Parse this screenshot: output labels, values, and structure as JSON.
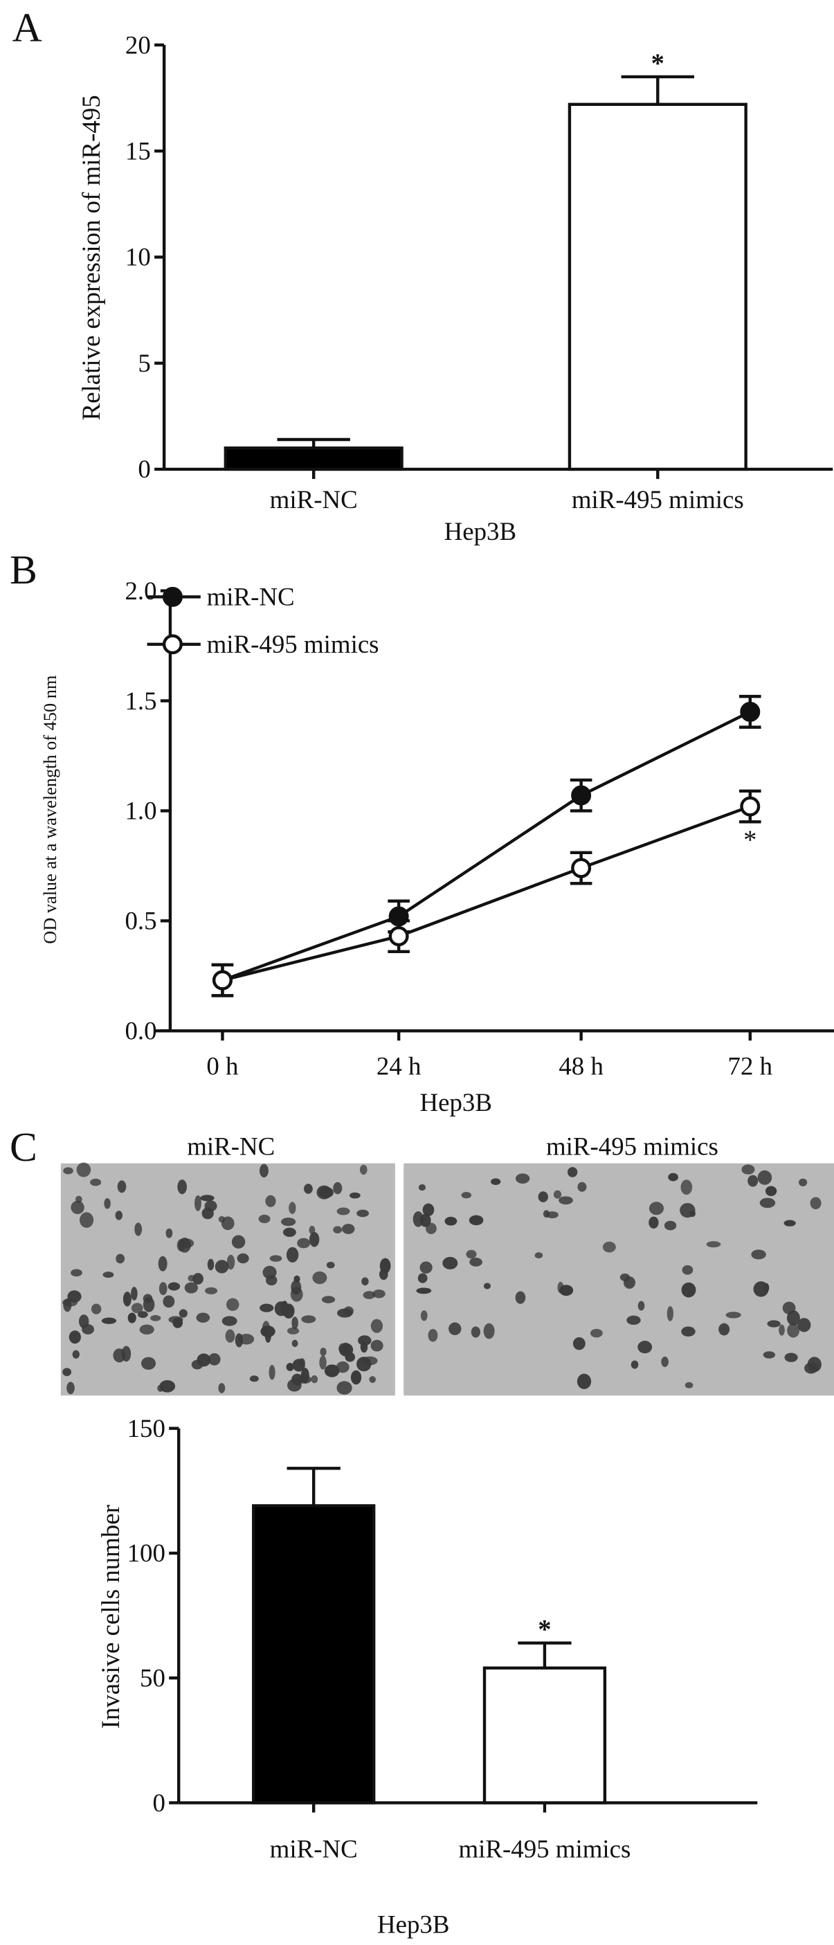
{
  "colors": {
    "ink": "#111111",
    "filled_bar": "#000000",
    "open_bar": "#ffffff",
    "micrograph_bg": "#b9b9b9",
    "cell": "#3a3a3a"
  },
  "chart_data": [
    {
      "panel": "A",
      "type": "bar",
      "categories": [
        "miR-NC",
        "miR-495 mimics"
      ],
      "values": [
        1.0,
        17.2
      ],
      "errors": [
        0.4,
        1.3
      ],
      "fills": [
        "#000000",
        "#ffffff"
      ],
      "significance": [
        "",
        "*"
      ],
      "xlabel": "Hep3B",
      "ylabel": "Relative expression of miR-495",
      "ylim": [
        0,
        20
      ],
      "yticks": [
        "0",
        "5",
        "10",
        "15",
        "20"
      ],
      "grid": false
    },
    {
      "panel": "B",
      "type": "line",
      "x": [
        "0 h",
        "24 h",
        "48 h",
        "72 h"
      ],
      "series": [
        {
          "name": "miR-NC",
          "marker": "filled-circle",
          "values": [
            0.23,
            0.52,
            1.07,
            1.45
          ],
          "errors": [
            0.07,
            0.07,
            0.07,
            0.07
          ]
        },
        {
          "name": "miR-495 mimics",
          "marker": "open-circle",
          "values": [
            0.23,
            0.43,
            0.74,
            1.02
          ],
          "errors": [
            0.07,
            0.07,
            0.07,
            0.07
          ],
          "significance": [
            "",
            "",
            "",
            "*"
          ]
        }
      ],
      "xlabel": "Hep3B",
      "ylabel": "OD value at a wavelength of 450 nm",
      "ylim": [
        0,
        2.0
      ],
      "yticks": [
        "0.0",
        "0.5",
        "1.0",
        "1.5",
        "2.0"
      ],
      "legend": "top-left",
      "grid": false
    },
    {
      "panel": "C",
      "type": "bar",
      "image_titles": [
        "miR-NC",
        "miR-495 mimics"
      ],
      "categories": [
        "miR-NC",
        "miR-495 mimics"
      ],
      "values": [
        119,
        54
      ],
      "errors": [
        15,
        10
      ],
      "fills": [
        "#000000",
        "#ffffff"
      ],
      "significance": [
        "",
        "*"
      ],
      "xlabel": "Hep3B",
      "ylabel": "Invasive cells number",
      "ylim": [
        0,
        150
      ],
      "yticks": [
        "0",
        "50",
        "100",
        "150"
      ],
      "grid": false
    }
  ]
}
